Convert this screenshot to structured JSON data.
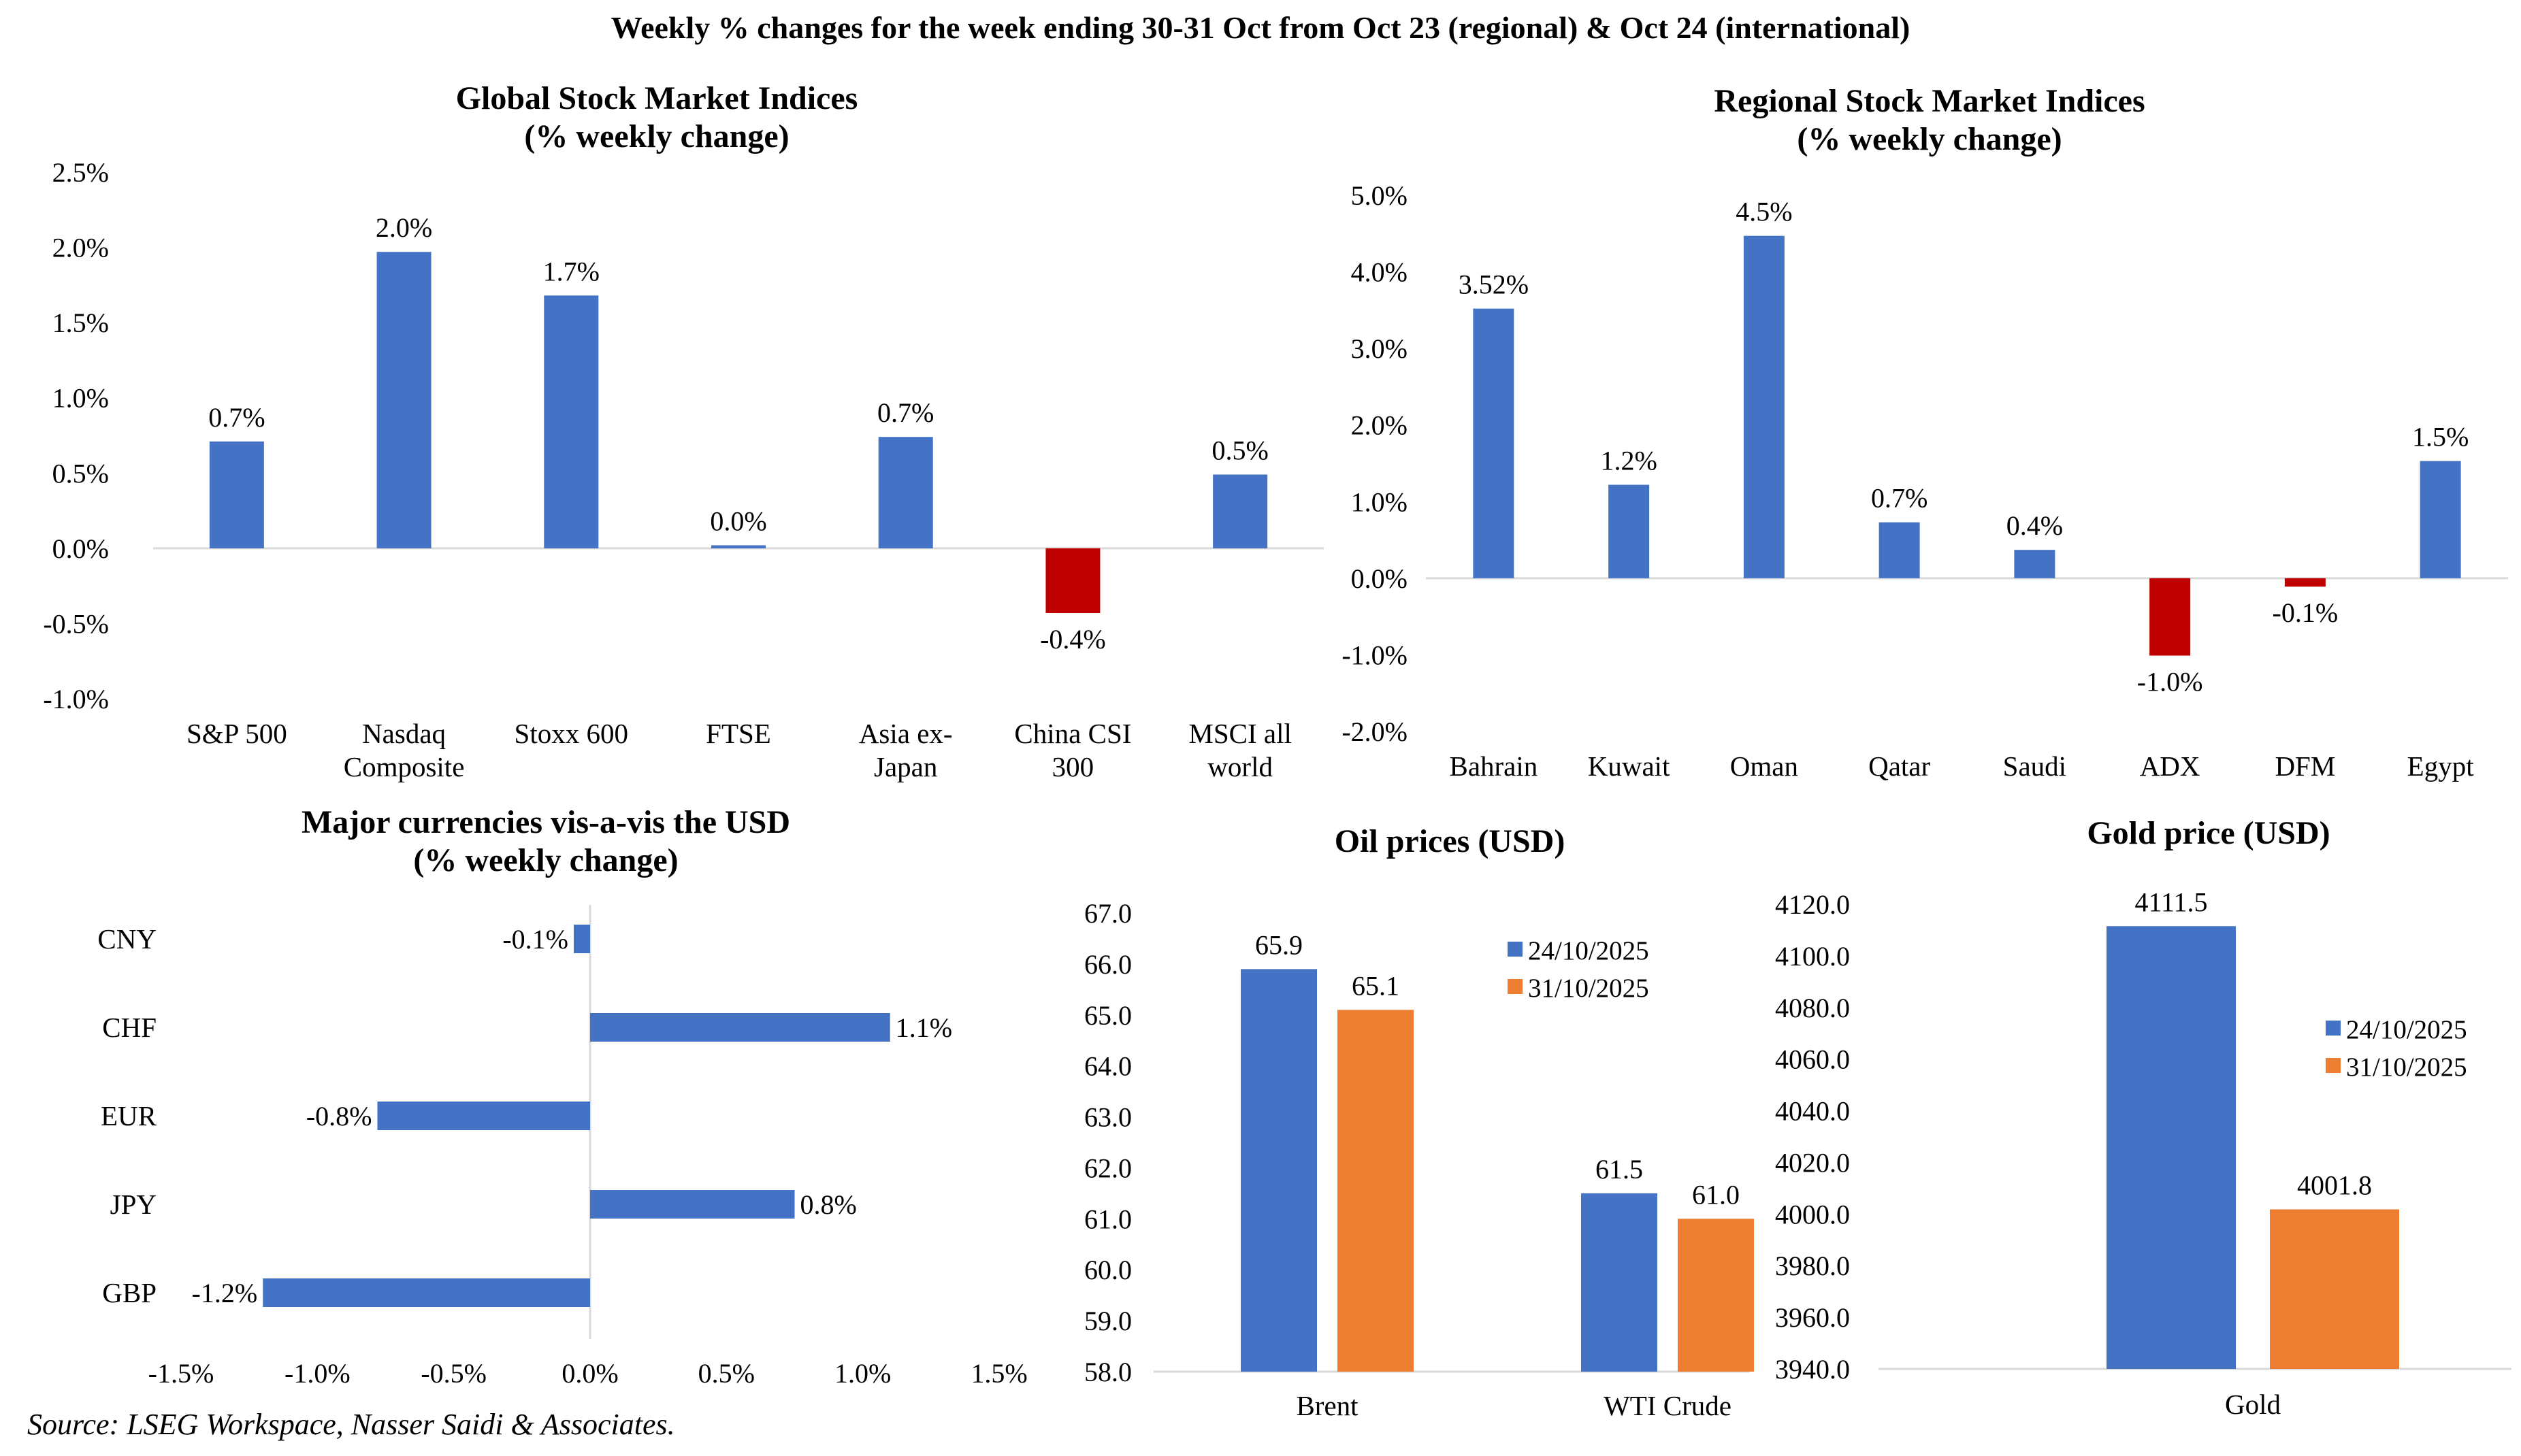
{
  "page": {
    "title": "Weekly % changes for the week ending 30-31 Oct from Oct 23 (regional) & Oct 24 (international)",
    "source": "Source: LSEG Workspace, Nasser Saidi & Associates."
  },
  "colors": {
    "blue": "#4472C4",
    "red": "#C00000",
    "orange": "#ED7D31",
    "axis": "#D9D9D9"
  },
  "chart_data": [
    {
      "id": "global",
      "type": "bar",
      "title": [
        "Global Stock Market Indices",
        "(% weekly change)"
      ],
      "categories": [
        [
          "S&P 500"
        ],
        [
          "Nasdaq",
          "Composite"
        ],
        [
          "Stoxx 600"
        ],
        [
          "FTSE"
        ],
        [
          "Asia ex-",
          "Japan"
        ],
        [
          "China CSI",
          "300"
        ],
        [
          "MSCI all",
          "world"
        ]
      ],
      "values": [
        0.7,
        2.0,
        1.7,
        0.0,
        0.7,
        -0.4,
        0.5
      ],
      "plot_values": [
        0.71,
        1.97,
        1.68,
        0.02,
        0.74,
        -0.43,
        0.49
      ],
      "data_labels": [
        "0.7%",
        "2.0%",
        "1.7%",
        "0.0%",
        "0.7%",
        "-0.4%",
        "0.5%"
      ],
      "ylim": [
        -1.0,
        2.5
      ],
      "yticks": [
        "-1.0%",
        "-0.5%",
        "0.0%",
        "0.5%",
        "1.0%",
        "1.5%",
        "2.0%",
        "2.5%"
      ]
    },
    {
      "id": "regional",
      "type": "bar",
      "title": [
        "Regional Stock Market Indices",
        "(% weekly change)"
      ],
      "categories": [
        [
          "Bahrain"
        ],
        [
          "Kuwait"
        ],
        [
          "Oman"
        ],
        [
          "Qatar"
        ],
        [
          "Saudi"
        ],
        [
          "ADX"
        ],
        [
          "DFM"
        ],
        [
          "Egypt"
        ]
      ],
      "values": [
        3.52,
        1.2,
        4.5,
        0.7,
        0.4,
        -1.0,
        -0.1,
        1.5
      ],
      "plot_values": [
        3.52,
        1.22,
        4.47,
        0.73,
        0.37,
        -1.01,
        -0.11,
        1.53
      ],
      "data_labels": [
        "3.52%",
        "1.2%",
        "4.5%",
        "0.7%",
        "0.4%",
        "-1.0%",
        "-0.1%",
        "1.5%"
      ],
      "ylim": [
        -2.0,
        5.0
      ],
      "yticks": [
        "-2.0%",
        "-1.0%",
        "0.0%",
        "1.0%",
        "2.0%",
        "3.0%",
        "4.0%",
        "5.0%"
      ]
    },
    {
      "id": "currencies",
      "type": "bar",
      "orientation": "horizontal",
      "title": [
        "Major currencies vis-a-vis the USD",
        "(% weekly change)"
      ],
      "categories": [
        "CNY",
        "CHF",
        "EUR",
        "JPY",
        "GBP"
      ],
      "values": [
        -0.1,
        1.1,
        -0.8,
        0.8,
        -1.2
      ],
      "plot_values": [
        -0.06,
        1.1,
        -0.78,
        0.75,
        -1.2
      ],
      "data_labels": [
        "-0.1%",
        "1.1%",
        "-0.8%",
        "0.8%",
        "-1.2%"
      ],
      "xlim": [
        -1.5,
        1.5
      ],
      "xticks": [
        "-1.5%",
        "-1.0%",
        "-0.5%",
        "0.0%",
        "0.5%",
        "1.0%",
        "1.5%"
      ]
    },
    {
      "id": "oil",
      "type": "bar",
      "title": [
        "Oil prices (USD)"
      ],
      "categories": [
        "Brent",
        "WTI Crude"
      ],
      "series": [
        {
          "name": "24/10/2025",
          "values": [
            65.9,
            61.5
          ]
        },
        {
          "name": "31/10/2025",
          "values": [
            65.1,
            61.0
          ]
        }
      ],
      "data_labels": [
        [
          "65.9",
          "61.5"
        ],
        [
          "65.1",
          "61.0"
        ]
      ],
      "ylim": [
        58.0,
        67.0
      ],
      "yticks": [
        "58.0",
        "59.0",
        "60.0",
        "61.0",
        "62.0",
        "63.0",
        "64.0",
        "65.0",
        "66.0",
        "67.0"
      ]
    },
    {
      "id": "gold",
      "type": "bar",
      "title": [
        "Gold price (USD)"
      ],
      "categories": [
        "Gold"
      ],
      "series": [
        {
          "name": "24/10/2025",
          "values": [
            4111.5
          ]
        },
        {
          "name": "31/10/2025",
          "values": [
            4001.8
          ]
        }
      ],
      "data_labels": [
        [
          "4111.5"
        ],
        [
          "4001.8"
        ]
      ],
      "ylim": [
        3940.0,
        4120.0
      ],
      "yticks": [
        "3940.0",
        "3960.0",
        "3980.0",
        "4000.0",
        "4020.0",
        "4040.0",
        "4060.0",
        "4080.0",
        "4100.0",
        "4120.0"
      ]
    }
  ]
}
